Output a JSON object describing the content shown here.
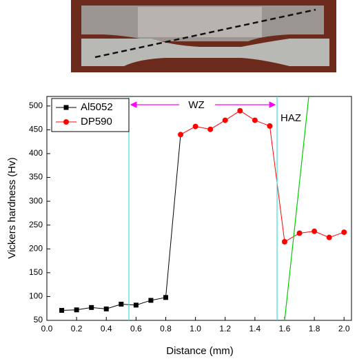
{
  "chart_data": {
    "type": "line",
    "x_label": "Distance (mm)",
    "y_label": "Vickers hardness (Hv)",
    "annotations": [
      "WZ",
      "HAZ"
    ],
    "series": [
      {
        "name": "Al5052",
        "color": "#000000",
        "marker": "square",
        "x": [
          0.1,
          0.2,
          0.3,
          0.4,
          0.5,
          0.6,
          0.7,
          0.8
        ],
        "values": [
          71,
          72,
          77,
          74,
          84,
          82,
          92,
          98
        ]
      },
      {
        "name": "DP590",
        "color": "#ff0000",
        "marker": "circle",
        "x": [
          0.9,
          1.0,
          1.1,
          1.2,
          1.3,
          1.4,
          1.5,
          1.6,
          1.7,
          1.8,
          1.9,
          2.0
        ],
        "values": [
          440,
          457,
          451,
          470,
          490,
          470,
          458,
          215,
          233,
          237,
          224,
          235
        ]
      }
    ],
    "xlim": [
      0,
      2.05
    ],
    "ylim": [
      50,
      520
    ],
    "xticks": [
      {
        "value": 0,
        "label": "0.0"
      },
      0.2,
      0.4,
      0.6,
      0.8,
      {
        "value": 1,
        "label": "1.0"
      },
      1.2,
      1.4,
      1.6,
      1.8,
      {
        "value": 2,
        "label": "2.0"
      }
    ],
    "yticks": [
      50,
      100,
      150,
      200,
      250,
      300,
      350,
      400,
      450,
      500
    ],
    "legend": "top-left"
  }
}
